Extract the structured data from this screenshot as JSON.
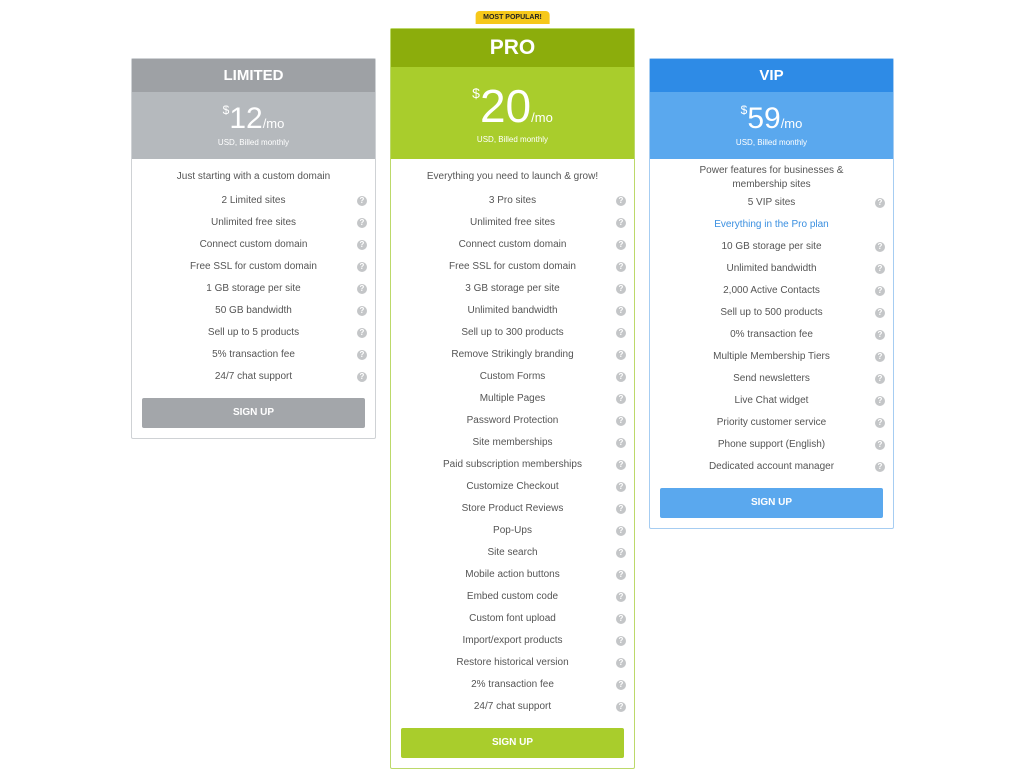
{
  "help_icon": "?",
  "plans": [
    {
      "name": "LIMITED",
      "currency": "$",
      "amount": "12",
      "period": "/mo",
      "note": "USD, Billed monthly",
      "tagline": "Just starting with a custom domain",
      "button": "SIGN UP",
      "colors": {
        "header": "#9ea1a5",
        "price": "#b5b9bd",
        "button": "#a3a6aa",
        "border": "#cfd2d5"
      },
      "features": [
        {
          "text": "2 Limited sites"
        },
        {
          "text": "Unlimited free sites"
        },
        {
          "text": "Connect custom domain"
        },
        {
          "text": "Free SSL for custom domain"
        },
        {
          "text": "1 GB storage per site"
        },
        {
          "text": "50 GB bandwidth"
        },
        {
          "text": "Sell up to 5 products"
        },
        {
          "text": "5% transaction fee"
        },
        {
          "text": "24/7 chat support"
        }
      ]
    },
    {
      "name": "PRO",
      "badge": "MOST POPULAR!",
      "currency": "$",
      "amount": "20",
      "period": "/mo",
      "note": "USD, Billed monthly",
      "tagline": "Everything you need to launch & grow!",
      "button": "SIGN UP",
      "colors": {
        "header": "#8cad0c",
        "price": "#a9cd2c",
        "button": "#a9cd2c",
        "border": "#bcd96a"
      },
      "features": [
        {
          "text": "3 Pro sites"
        },
        {
          "text": "Unlimited free sites"
        },
        {
          "text": "Connect custom domain"
        },
        {
          "text": "Free SSL for custom domain"
        },
        {
          "text": "3 GB storage per site"
        },
        {
          "text": "Unlimited bandwidth"
        },
        {
          "text": "Sell up to 300 products"
        },
        {
          "text": "Remove Strikingly branding"
        },
        {
          "text": "Custom Forms"
        },
        {
          "text": "Multiple Pages"
        },
        {
          "text": "Password Protection"
        },
        {
          "text": "Site memberships"
        },
        {
          "text": "Paid subscription memberships"
        },
        {
          "text": "Customize Checkout"
        },
        {
          "text": "Store Product Reviews"
        },
        {
          "text": "Pop-Ups"
        },
        {
          "text": "Site search"
        },
        {
          "text": "Mobile action buttons"
        },
        {
          "text": "Embed custom code"
        },
        {
          "text": "Custom font upload"
        },
        {
          "text": "Import/export products"
        },
        {
          "text": "Restore historical version"
        },
        {
          "text": "2% transaction fee"
        },
        {
          "text": "24/7 chat support"
        }
      ]
    },
    {
      "name": "VIP",
      "currency": "$",
      "amount": "59",
      "period": "/mo",
      "note": "USD, Billed monthly",
      "tagline": "Power features for businesses & membership sites",
      "button": "SIGN UP",
      "colors": {
        "header": "#2e8be6",
        "price": "#5aa8ee",
        "button": "#5aa8ee",
        "border": "#a6cdf2"
      },
      "features": [
        {
          "text": "5 VIP sites"
        },
        {
          "text": "Everything in the Pro plan",
          "highlight": true
        },
        {
          "text": "10 GB storage per site"
        },
        {
          "text": "Unlimited bandwidth"
        },
        {
          "text": "2,000 Active Contacts"
        },
        {
          "text": "Sell up to 500 products"
        },
        {
          "text": "0% transaction fee"
        },
        {
          "text": "Multiple Membership Tiers"
        },
        {
          "text": "Send newsletters"
        },
        {
          "text": "Live Chat widget"
        },
        {
          "text": "Priority customer service"
        },
        {
          "text": "Phone support (English)"
        },
        {
          "text": "Dedicated account manager"
        }
      ]
    }
  ]
}
